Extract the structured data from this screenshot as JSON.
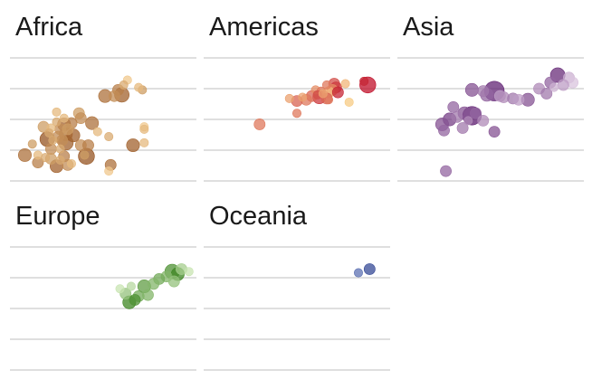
{
  "chart_data": {
    "type": "scatter",
    "title": "",
    "xlabel": "",
    "ylabel": "",
    "xlim": [
      0,
      100
    ],
    "ylim": [
      0,
      100
    ],
    "grid": true,
    "legend": "none",
    "panels": [
      {
        "name": "Africa",
        "color_light": "#fbd79a",
        "color_dark": "#8b4513",
        "points": [
          {
            "x": 63,
            "y": 82,
            "s": 1,
            "c": 0.1
          },
          {
            "x": 61,
            "y": 78,
            "s": 1,
            "c": 0.3
          },
          {
            "x": 58,
            "y": 74,
            "s": 2,
            "c": 0.6
          },
          {
            "x": 71,
            "y": 74,
            "s": 1,
            "c": 0.4
          },
          {
            "x": 69,
            "y": 76,
            "s": 1,
            "c": 0.2
          },
          {
            "x": 60,
            "y": 70,
            "s": 4,
            "c": 0.8
          },
          {
            "x": 51,
            "y": 69,
            "s": 3,
            "c": 0.7
          },
          {
            "x": 56,
            "y": 69,
            "s": 2,
            "c": 0.5
          },
          {
            "x": 25,
            "y": 56,
            "s": 1,
            "c": 0.2
          },
          {
            "x": 37,
            "y": 55,
            "s": 2,
            "c": 0.4
          },
          {
            "x": 29,
            "y": 51,
            "s": 1,
            "c": 0.2
          },
          {
            "x": 38,
            "y": 51,
            "s": 2,
            "c": 0.5
          },
          {
            "x": 29,
            "y": 46,
            "s": 3,
            "c": 0.8
          },
          {
            "x": 33,
            "y": 47,
            "s": 2,
            "c": 0.6
          },
          {
            "x": 25,
            "y": 48,
            "s": 1,
            "c": 0.3
          },
          {
            "x": 44,
            "y": 47,
            "s": 3,
            "c": 0.7
          },
          {
            "x": 18,
            "y": 44,
            "s": 2,
            "c": 0.4
          },
          {
            "x": 22,
            "y": 43,
            "s": 1,
            "c": 0.2
          },
          {
            "x": 27,
            "y": 42,
            "s": 2,
            "c": 0.5
          },
          {
            "x": 31,
            "y": 42,
            "s": 2,
            "c": 0.4
          },
          {
            "x": 47,
            "y": 40,
            "s": 1,
            "c": 0.2
          },
          {
            "x": 72,
            "y": 44,
            "s": 1,
            "c": 0.1
          },
          {
            "x": 21,
            "y": 39,
            "s": 1,
            "c": 0.3
          },
          {
            "x": 30,
            "y": 38,
            "s": 3,
            "c": 0.7
          },
          {
            "x": 34,
            "y": 37,
            "s": 3,
            "c": 0.8
          },
          {
            "x": 53,
            "y": 36,
            "s": 1,
            "c": 0.3
          },
          {
            "x": 26,
            "y": 36,
            "s": 2,
            "c": 0.5
          },
          {
            "x": 20,
            "y": 34,
            "s": 4,
            "c": 0.9
          },
          {
            "x": 28,
            "y": 33,
            "s": 2,
            "c": 0.5
          },
          {
            "x": 23,
            "y": 33,
            "s": 1,
            "c": 0.3
          },
          {
            "x": 30,
            "y": 31,
            "s": 4,
            "c": 0.8
          },
          {
            "x": 72,
            "y": 31,
            "s": 1,
            "c": 0.2
          },
          {
            "x": 38,
            "y": 29,
            "s": 2,
            "c": 0.5
          },
          {
            "x": 12,
            "y": 30,
            "s": 1,
            "c": 0.4
          },
          {
            "x": 42,
            "y": 29,
            "s": 2,
            "c": 0.6
          },
          {
            "x": 66,
            "y": 29,
            "s": 3,
            "c": 0.8
          },
          {
            "x": 27,
            "y": 26,
            "s": 1,
            "c": 0.3
          },
          {
            "x": 22,
            "y": 26,
            "s": 2,
            "c": 0.5
          },
          {
            "x": 8,
            "y": 21,
            "s": 3,
            "c": 0.7
          },
          {
            "x": 15,
            "y": 21,
            "s": 1,
            "c": 0.2
          },
          {
            "x": 40,
            "y": 21,
            "s": 1,
            "c": 0.4
          },
          {
            "x": 19,
            "y": 19,
            "s": 1,
            "c": 0.3
          },
          {
            "x": 29,
            "y": 20,
            "s": 2,
            "c": 0.6
          },
          {
            "x": 41,
            "y": 20,
            "s": 5,
            "c": 0.9
          },
          {
            "x": 22,
            "y": 18,
            "s": 2,
            "c": 0.4
          },
          {
            "x": 27,
            "y": 17,
            "s": 1,
            "c": 0.3
          },
          {
            "x": 15,
            "y": 15,
            "s": 2,
            "c": 0.6
          },
          {
            "x": 33,
            "y": 14,
            "s": 1,
            "c": 0.2
          },
          {
            "x": 31,
            "y": 13,
            "s": 2,
            "c": 0.5
          },
          {
            "x": 25,
            "y": 12,
            "s": 3,
            "c": 0.8
          },
          {
            "x": 54,
            "y": 13,
            "s": 2,
            "c": 0.7
          },
          {
            "x": 53,
            "y": 8,
            "s": 1,
            "c": 0.1
          },
          {
            "x": 72,
            "y": 42,
            "s": 1,
            "c": 0.2
          }
        ]
      },
      {
        "name": "Americas",
        "color_light": "#fde08e",
        "color_dark": "#c0102a",
        "points": [
          {
            "x": 86,
            "y": 81,
            "s": 1,
            "c": 0.9
          },
          {
            "x": 88,
            "y": 78,
            "s": 5,
            "c": 1.0
          },
          {
            "x": 76,
            "y": 79,
            "s": 1,
            "c": 0.2
          },
          {
            "x": 70,
            "y": 79,
            "s": 2,
            "c": 0.7
          },
          {
            "x": 66,
            "y": 78,
            "s": 1,
            "c": 0.5
          },
          {
            "x": 71,
            "y": 76,
            "s": 2,
            "c": 0.8
          },
          {
            "x": 69,
            "y": 74,
            "s": 2,
            "c": 0.4
          },
          {
            "x": 60,
            "y": 74,
            "s": 1,
            "c": 0.4
          },
          {
            "x": 63,
            "y": 73,
            "s": 1,
            "c": 0.5
          },
          {
            "x": 67,
            "y": 72,
            "s": 2,
            "c": 0.2
          },
          {
            "x": 72,
            "y": 72,
            "s": 2,
            "c": 0.9
          },
          {
            "x": 61,
            "y": 70,
            "s": 1,
            "c": 0.7
          },
          {
            "x": 58,
            "y": 69,
            "s": 2,
            "c": 0.6
          },
          {
            "x": 62,
            "y": 68,
            "s": 3,
            "c": 0.8
          },
          {
            "x": 53,
            "y": 68,
            "s": 1,
            "c": 0.3
          },
          {
            "x": 55,
            "y": 66,
            "s": 2,
            "c": 0.5
          },
          {
            "x": 66,
            "y": 67,
            "s": 2,
            "c": 0.6
          },
          {
            "x": 50,
            "y": 65,
            "s": 2,
            "c": 0.6
          },
          {
            "x": 46,
            "y": 67,
            "s": 1,
            "c": 0.3
          },
          {
            "x": 78,
            "y": 64,
            "s": 1,
            "c": 0.1
          },
          {
            "x": 67,
            "y": 66,
            "s": 1,
            "c": 0.5
          },
          {
            "x": 50,
            "y": 55,
            "s": 1,
            "c": 0.5
          },
          {
            "x": 30,
            "y": 46,
            "s": 2,
            "c": 0.5
          },
          {
            "x": 64,
            "y": 71,
            "s": 1,
            "c": 0.3
          }
        ]
      },
      {
        "name": "Asia",
        "color_light": "#e8d7ea",
        "color_dark": "#5b1a6e",
        "points": [
          {
            "x": 86,
            "y": 86,
            "s": 4,
            "c": 0.9
          },
          {
            "x": 92,
            "y": 84,
            "s": 2,
            "c": 0.2
          },
          {
            "x": 82,
            "y": 80,
            "s": 2,
            "c": 0.6
          },
          {
            "x": 94,
            "y": 80,
            "s": 2,
            "c": 0.1
          },
          {
            "x": 89,
            "y": 78,
            "s": 2,
            "c": 0.3
          },
          {
            "x": 84,
            "y": 76,
            "s": 1,
            "c": 0.2
          },
          {
            "x": 76,
            "y": 75,
            "s": 2,
            "c": 0.4
          },
          {
            "x": 52,
            "y": 73,
            "s": 8,
            "c": 0.95
          },
          {
            "x": 40,
            "y": 74,
            "s": 3,
            "c": 0.7
          },
          {
            "x": 46,
            "y": 73,
            "s": 2,
            "c": 0.5
          },
          {
            "x": 48,
            "y": 70,
            "s": 3,
            "c": 0.6
          },
          {
            "x": 55,
            "y": 69,
            "s": 2,
            "c": 0.3
          },
          {
            "x": 57,
            "y": 68,
            "s": 2,
            "c": 0.4
          },
          {
            "x": 62,
            "y": 67,
            "s": 2,
            "c": 0.5
          },
          {
            "x": 70,
            "y": 66,
            "s": 3,
            "c": 0.7
          },
          {
            "x": 65,
            "y": 66,
            "s": 2,
            "c": 0.3
          },
          {
            "x": 80,
            "y": 71,
            "s": 2,
            "c": 0.5
          },
          {
            "x": 30,
            "y": 60,
            "s": 2,
            "c": 0.6
          },
          {
            "x": 36,
            "y": 55,
            "s": 3,
            "c": 0.7
          },
          {
            "x": 42,
            "y": 55,
            "s": 2,
            "c": 0.6
          },
          {
            "x": 40,
            "y": 53,
            "s": 7,
            "c": 1.0
          },
          {
            "x": 32,
            "y": 52,
            "s": 2,
            "c": 0.5
          },
          {
            "x": 28,
            "y": 50,
            "s": 3,
            "c": 0.8
          },
          {
            "x": 46,
            "y": 49,
            "s": 2,
            "c": 0.4
          },
          {
            "x": 38,
            "y": 49,
            "s": 1,
            "c": 0.4
          },
          {
            "x": 24,
            "y": 46,
            "s": 3,
            "c": 0.7
          },
          {
            "x": 35,
            "y": 43,
            "s": 2,
            "c": 0.5
          },
          {
            "x": 25,
            "y": 41,
            "s": 2,
            "c": 0.6
          },
          {
            "x": 52,
            "y": 40,
            "s": 2,
            "c": 0.7
          },
          {
            "x": 26,
            "y": 8,
            "s": 2,
            "c": 0.6
          }
        ]
      },
      {
        "name": "Europe",
        "color_light": "#d9f0c4",
        "color_dark": "#2d7a10",
        "points": [
          {
            "x": 92,
            "y": 82,
            "s": 2,
            "c": 0.3
          },
          {
            "x": 96,
            "y": 80,
            "s": 1,
            "c": 0.1
          },
          {
            "x": 87,
            "y": 80,
            "s": 4,
            "c": 0.8
          },
          {
            "x": 90,
            "y": 78,
            "s": 3,
            "c": 0.9
          },
          {
            "x": 84,
            "y": 76,
            "s": 2,
            "c": 0.5
          },
          {
            "x": 80,
            "y": 74,
            "s": 2,
            "c": 0.6
          },
          {
            "x": 88,
            "y": 72,
            "s": 2,
            "c": 0.4
          },
          {
            "x": 77,
            "y": 70,
            "s": 2,
            "c": 0.5
          },
          {
            "x": 72,
            "y": 68,
            "s": 3,
            "c": 0.7
          },
          {
            "x": 65,
            "y": 68,
            "s": 1,
            "c": 0.2
          },
          {
            "x": 59,
            "y": 66,
            "s": 1,
            "c": 0.1
          },
          {
            "x": 62,
            "y": 62,
            "s": 2,
            "c": 0.4
          },
          {
            "x": 69,
            "y": 60,
            "s": 2,
            "c": 0.6
          },
          {
            "x": 74,
            "y": 61,
            "s": 2,
            "c": 0.5
          },
          {
            "x": 67,
            "y": 57,
            "s": 2,
            "c": 0.8
          },
          {
            "x": 64,
            "y": 55,
            "s": 3,
            "c": 0.9
          }
        ]
      },
      {
        "name": "Oceania",
        "color_light": "#8fa5d6",
        "color_dark": "#2c3f8f",
        "points": [
          {
            "x": 89,
            "y": 82,
            "s": 2,
            "c": 0.9
          },
          {
            "x": 83,
            "y": 79,
            "s": 1,
            "c": 0.5
          }
        ]
      }
    ]
  }
}
